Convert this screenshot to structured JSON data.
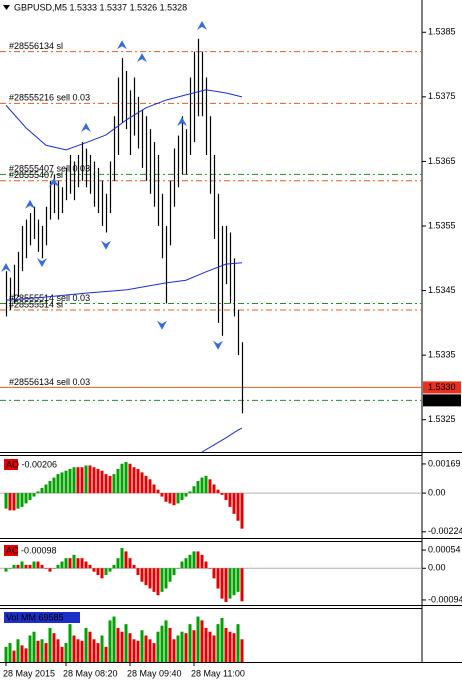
{
  "chart_data": [
    {
      "type": "ohlc",
      "title": "GBPUSD,M5  1.5333 1.5337 1.5326 1.5328",
      "color": "#000000",
      "high": [
        1.5348,
        1.5347,
        1.5349,
        1.5351,
        1.5355,
        1.5356,
        1.5357,
        1.5358,
        1.5356,
        1.5355,
        1.5358,
        1.5362,
        1.5363,
        1.5362,
        1.5361,
        1.5364,
        1.5366,
        1.5365,
        1.5366,
        1.5368,
        1.5367,
        1.5366,
        1.5365,
        1.5364,
        1.5362,
        1.536,
        1.5365,
        1.5372,
        1.5378,
        1.5381,
        1.5379,
        1.5376,
        1.5378,
        1.5375,
        1.5373,
        1.5372,
        1.537,
        1.5368,
        1.5366,
        1.536,
        1.5355,
        1.5362,
        1.5367,
        1.5369,
        1.5372,
        1.537,
        1.5378,
        1.5382,
        1.5384,
        1.5382,
        1.5378,
        1.5372,
        1.5366,
        1.536,
        1.5355,
        1.5355,
        1.5354,
        1.535,
        1.5342,
        1.5337
      ],
      "low": [
        1.5341,
        1.5342,
        1.5343,
        1.5344,
        1.5348,
        1.535,
        1.5352,
        1.5353,
        1.5351,
        1.535,
        1.5352,
        1.5356,
        1.5357,
        1.5356,
        1.5357,
        1.5359,
        1.536,
        1.5359,
        1.5361,
        1.5362,
        1.5361,
        1.536,
        1.5358,
        1.5357,
        1.5355,
        1.5354,
        1.5357,
        1.5362,
        1.5366,
        1.5371,
        1.537,
        1.5366,
        1.5369,
        1.5367,
        1.5364,
        1.5362,
        1.536,
        1.5358,
        1.5355,
        1.535,
        1.5343,
        1.5352,
        1.5358,
        1.5361,
        1.5363,
        1.5363,
        1.5366,
        1.5368,
        1.5372,
        1.5372,
        1.5366,
        1.536,
        1.5353,
        1.534,
        1.5338,
        1.5346,
        1.5343,
        1.5341,
        1.5335,
        1.5326
      ],
      "ylim": [
        1.532,
        1.539
      ],
      "yticks": [
        1.5385,
        1.5375,
        1.5365,
        1.5355,
        1.5345,
        1.5335,
        1.5325
      ],
      "price_tags": [
        {
          "value": 1.533,
          "label": "1.5330",
          "color": "#e8301c"
        },
        {
          "value": 1.5328,
          "label": "1.5328",
          "color": "#000000"
        }
      ],
      "xticks": [
        {
          "value": 0,
          "label": "28 May 2015"
        },
        {
          "value": 15,
          "label": "28 May 08:20"
        },
        {
          "value": 31,
          "label": "28 May 09:40"
        },
        {
          "value": 47,
          "label": "28 May 11:00"
        }
      ],
      "moving_averages": [
        {
          "color": "#1c2fc8",
          "x": [
            0,
            5,
            10,
            15,
            20,
            25,
            30,
            35,
            40,
            45,
            50,
            55,
            59
          ],
          "values": [
            1.53737,
            1.53702,
            1.53675,
            1.53668,
            1.53679,
            1.53691,
            1.53714,
            1.53733,
            1.53745,
            1.53753,
            1.53761,
            1.53756,
            1.5375
          ]
        },
        {
          "color": "#1c2fc8",
          "x": [
            0,
            10,
            20,
            30,
            40,
            45,
            50,
            55,
            59
          ],
          "values": [
            1.53435,
            1.5344,
            1.53446,
            1.53451,
            1.53462,
            1.53466,
            1.53479,
            1.53491,
            1.53493
          ]
        },
        {
          "color": "#1c2fc8",
          "x": [
            49,
            52,
            55,
            58,
            59
          ],
          "values": [
            1.532,
            1.53211,
            1.53222,
            1.53234,
            1.53237
          ]
        }
      ],
      "fractals_up": {
        "color": "#3a6cd8",
        "x": [
          0,
          6,
          12,
          20,
          29,
          34,
          44,
          49
        ],
        "values": [
          1.53485,
          1.53583,
          1.53617,
          1.53702,
          1.5383,
          1.5381,
          1.53711,
          1.5386
        ]
      },
      "fractals_down": {
        "color": "#3a6cd8",
        "x": [
          9,
          25,
          39,
          53
        ],
        "values": [
          1.53494,
          1.53521,
          1.53397,
          1.53366
        ]
      },
      "orders": [
        {
          "label": "#28556134 sl",
          "price": 1.5382,
          "color": "#d8602c"
        },
        {
          "label": "#28555216 sell 0.03",
          "price": 1.5374,
          "color": "#d8602c"
        },
        {
          "label": "#28555407 sell 0.03",
          "price": 1.5363,
          "color": "#2c8c2c"
        },
        {
          "label": "#28555407 sl",
          "price": 1.5362,
          "color": "#d8602c"
        },
        {
          "label": "#28555514 sell 0.03",
          "price": 1.5343,
          "color": "#2c8c2c"
        },
        {
          "label": "#28555514 sl",
          "price": 1.5342,
          "color": "#d8602c"
        },
        {
          "label": "#28556134 sell 0.03",
          "price": 1.533,
          "color": "#d8602c"
        },
        {
          "label": "",
          "price": 1.5328,
          "color": "#2c8c2c"
        }
      ]
    },
    {
      "type": "histogram",
      "label": "AO -0.00206",
      "label_color": "#e00000",
      "up_color": "#00a000",
      "down_color": "#e00000",
      "values": [
        -0.0009,
        -0.001,
        -0.001,
        -0.0009,
        -0.0008,
        -0.0006,
        -0.0004,
        -0.0002,
        0.0001,
        0.0003,
        0.0005,
        0.0007,
        0.0009,
        0.0011,
        0.0012,
        0.0013,
        0.0014,
        0.0015,
        0.0015,
        0.0015,
        0.0016,
        0.0016,
        0.0015,
        0.0014,
        0.0013,
        0.0011,
        0.001,
        0.0011,
        0.0014,
        0.0017,
        0.0018,
        0.0017,
        0.0015,
        0.0014,
        0.0012,
        0.001,
        0.0008,
        0.0005,
        0.0002,
        -0.0002,
        -0.0005,
        -0.0006,
        -0.0007,
        -0.0006,
        -0.0004,
        -0.0002,
        0.0001,
        0.0004,
        0.0007,
        0.0009,
        0.001,
        0.0008,
        0.0005,
        0.0002,
        -0.0001,
        -0.0004,
        -0.0008,
        -0.0012,
        -0.0016,
        -0.00206
      ],
      "ylim": [
        -0.0026,
        0.00215
      ],
      "yticks": [
        0.00169,
        {
          "value": 0,
          "label": "0.00"
        },
        -0.00224
      ]
    },
    {
      "type": "histogram",
      "label": "AC -0.00098",
      "label_color": "#e00000",
      "up_color": "#00a000",
      "down_color": "#e00000",
      "values": [
        -0.0001,
        0,
        0.0001,
        0.0001,
        0.0002,
        0.0001,
        0.0001,
        0.0002,
        0.0002,
        0.0001,
        0,
        -0.0001,
        0,
        0.0001,
        0.0002,
        0.0003,
        0.0003,
        0.0004,
        0.0003,
        0.0003,
        0.0002,
        0.0001,
        -0.0001,
        -0.0002,
        -0.0003,
        -0.0002,
        -0.0001,
        0.0001,
        0.0003,
        0.0006,
        0.0005,
        0.0003,
        0.0001,
        -0.0002,
        -0.0004,
        -0.0005,
        -0.0006,
        -0.0007,
        -0.0008,
        -0.0007,
        -0.0006,
        -0.0004,
        -0.0002,
        0,
        0.0002,
        0.0003,
        0.0004,
        0.0005,
        0.0005,
        0.0004,
        0.0002,
        0,
        -0.0003,
        -0.0006,
        -0.0009,
        -0.001,
        -0.0009,
        -0.0008,
        -0.0007,
        -0.00098
      ],
      "ylim": [
        -0.00109,
        0.00078
      ],
      "yticks": [
        {
          "value": 0.00054,
          "label": "0.00054"
        },
        {
          "value": 0,
          "label": "0.00"
        },
        -0.00094
      ]
    },
    {
      "type": "volume",
      "label": "Vol MM 69585",
      "label_color": "#1c2fc8",
      "up_color": "#00a000",
      "down_color": "#e00000",
      "values": [
        20,
        25,
        15,
        30,
        22,
        18,
        35,
        40,
        28,
        30,
        25,
        45,
        38,
        30,
        20,
        25,
        50,
        35,
        30,
        28,
        45,
        40,
        30,
        25,
        35,
        20,
        55,
        60,
        45,
        40,
        50,
        38,
        30,
        28,
        42,
        35,
        30,
        25,
        40,
        48,
        55,
        45,
        30,
        35,
        40,
        38,
        50,
        42,
        60,
        55,
        45,
        40,
        35,
        50,
        58,
        45,
        40,
        38,
        50,
        30
      ],
      "ylim": [
        0,
        70
      ]
    }
  ]
}
